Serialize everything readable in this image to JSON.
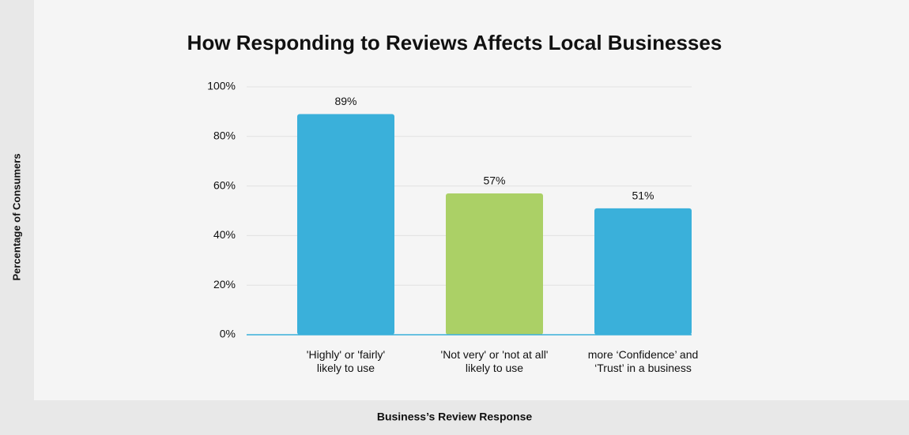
{
  "chart_data": {
    "type": "bar",
    "title": "How Responding to Reviews Affects Local Businesses",
    "y_label": "Percentage of Consumers",
    "x_label": "Business’s Review Response",
    "categories": [
      "'Highly' or 'fairly'\nlikely to use",
      "'Not very' or 'not at all'\nlikely to use",
      "more ‘Confidence’ and\n‘Trust’ in a business"
    ],
    "values": [
      89,
      57,
      51
    ],
    "value_labels": [
      "89%",
      "57%",
      "51%"
    ],
    "colors": [
      "#3ab0da",
      "#abd066",
      "#3ab0da"
    ],
    "ylim": [
      0,
      100
    ],
    "yticks": [
      {
        "value": 0,
        "label": "0%"
      },
      {
        "value": 20,
        "label": "20%"
      },
      {
        "value": 40,
        "label": "40%"
      },
      {
        "value": 60,
        "label": "60%"
      },
      {
        "value": 80,
        "label": "80%"
      },
      {
        "value": 100,
        "label": "100%"
      }
    ],
    "grid": true
  }
}
